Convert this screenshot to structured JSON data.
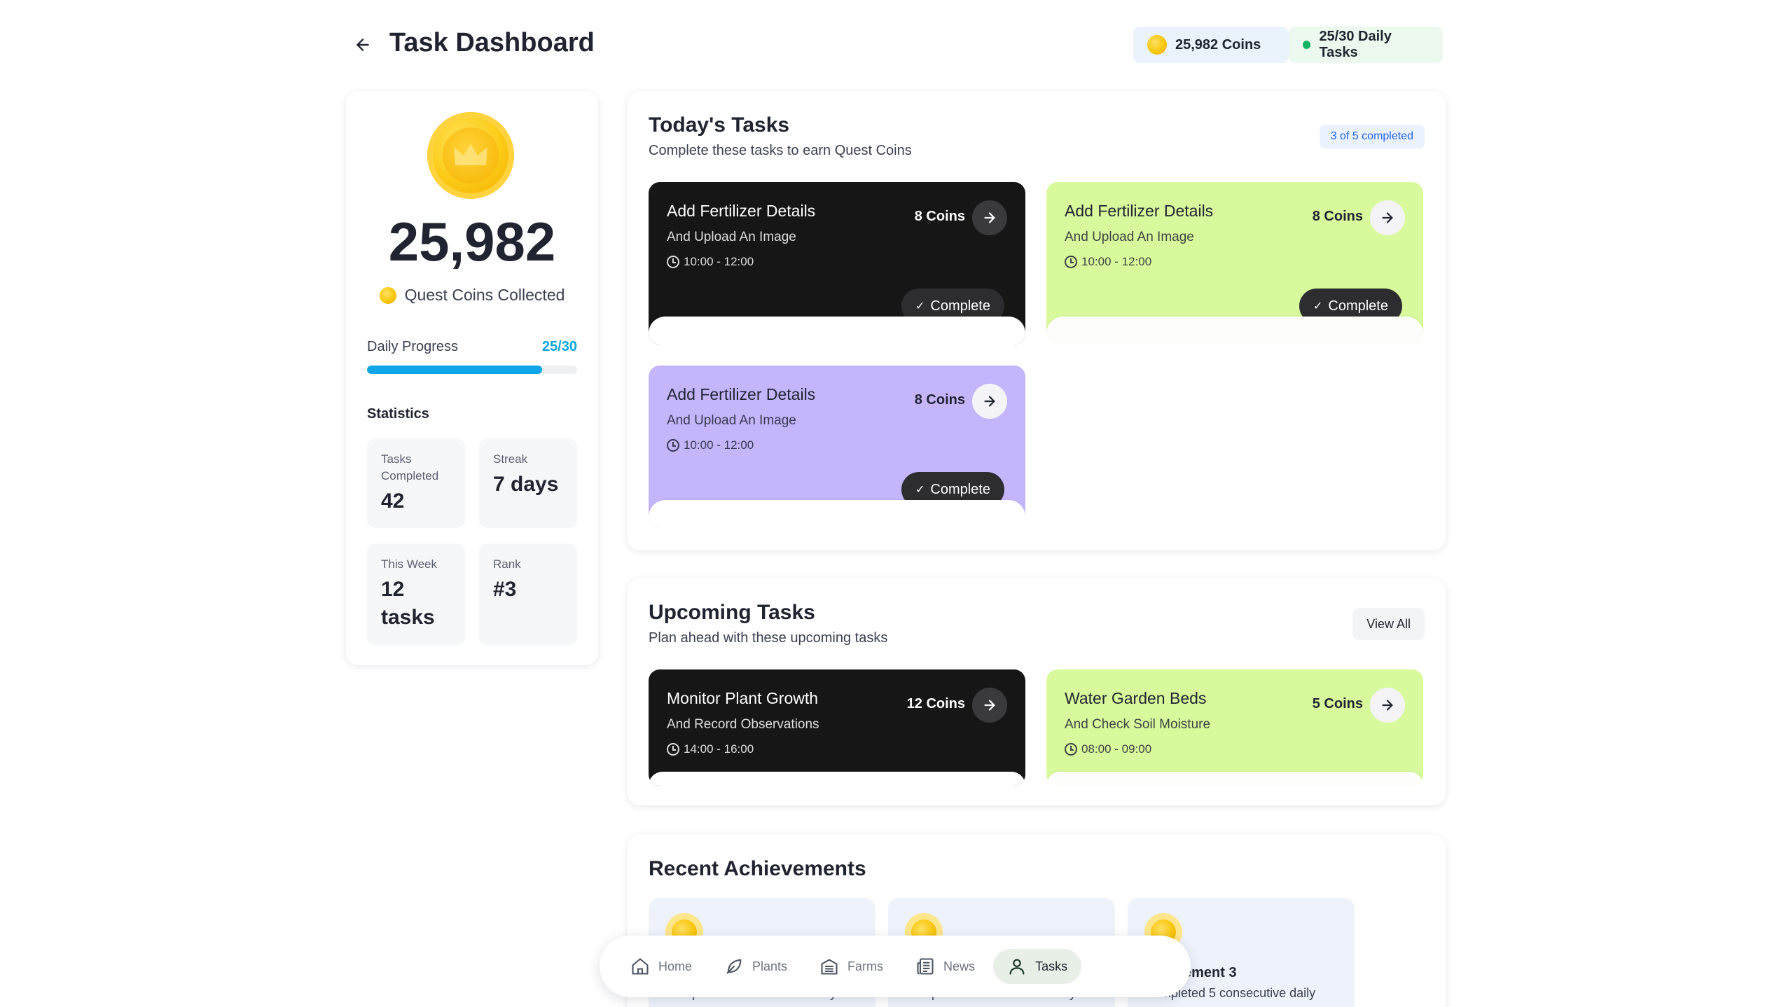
{
  "header": {
    "title": "Task Dashboard",
    "coins_pill": "25,982 Coins",
    "daily_pill": "25/30 Daily Tasks"
  },
  "summary": {
    "total_coins": "25,982",
    "collected_label": "Quest Coins Collected",
    "progress_label": "Daily Progress",
    "progress_value": "25/30",
    "progress_fraction": 0.8333,
    "statistics_title": "Statistics",
    "stats": [
      {
        "label": "Tasks Completed",
        "value": "42"
      },
      {
        "label": "Streak",
        "value": "7 days"
      },
      {
        "label": "This Week",
        "value": "12 tasks"
      },
      {
        "label": "Rank",
        "value": "#3"
      }
    ]
  },
  "today": {
    "title": "Today's Tasks",
    "subtitle": "Complete these tasks to earn Quest Coins",
    "badge": "3 of 5 completed",
    "complete_label": "Complete",
    "tasks": [
      {
        "title": "Add Fertilizer Details",
        "desc": "And Upload An Image",
        "time": "10:00 - 12:00",
        "coins": "8 Coins"
      },
      {
        "title": "Add Fertilizer Details",
        "desc": "And Upload An Image",
        "time": "10:00 - 12:00",
        "coins": "8 Coins"
      },
      {
        "title": "Add Fertilizer Details",
        "desc": "And Upload An Image",
        "time": "10:00 - 12:00",
        "coins": "8 Coins"
      }
    ]
  },
  "upcoming": {
    "title": "Upcoming Tasks",
    "subtitle": "Plan ahead with these upcoming tasks",
    "view_all": "View All",
    "tasks": [
      {
        "title": "Monitor Plant Growth",
        "desc": "And Record Observations",
        "time": "14:00 - 16:00",
        "coins": "12 Coins"
      },
      {
        "title": "Water Garden Beds",
        "desc": "And Check Soil Moisture",
        "time": "08:00 - 09:00",
        "coins": "5 Coins"
      }
    ]
  },
  "achievements": {
    "title": "Recent Achievements",
    "items": [
      {
        "title": "",
        "desc": "Completed 5 consecutive daily"
      },
      {
        "title": "",
        "desc": "Completed 5 consecutive daily"
      },
      {
        "title": "ement 3",
        "desc": "Completed 5 consecutive daily"
      }
    ]
  },
  "nav": {
    "items": [
      {
        "label": "Home",
        "icon": "home-icon"
      },
      {
        "label": "Plants",
        "icon": "leaf-icon"
      },
      {
        "label": "Farms",
        "icon": "barn-icon"
      },
      {
        "label": "News",
        "icon": "newspaper-icon"
      },
      {
        "label": "Tasks",
        "icon": "user-icon",
        "active": true
      }
    ]
  },
  "colors": {
    "accent_blue": "#0ea5e9",
    "card_dark": "#161616",
    "card_lime": "#d9f99d",
    "card_purple": "#c4b5fd",
    "status_green": "#16b364"
  }
}
